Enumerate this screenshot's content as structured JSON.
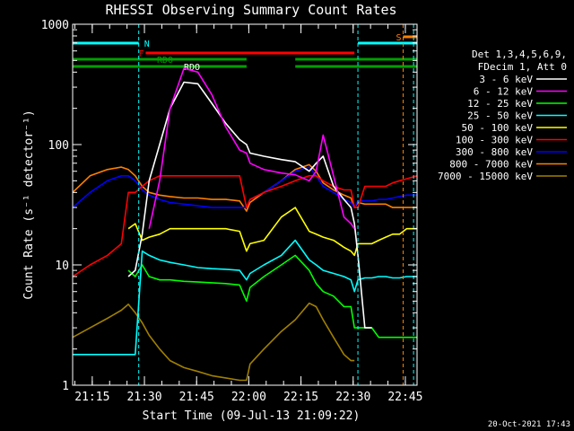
{
  "chart_data": {
    "type": "line",
    "title": "RHESSI Observing Summary Count Rates",
    "xlabel": "Start Time (09-Jul-13 21:09:22)",
    "ylabel": "Count Rate (s⁻¹ detector⁻¹)",
    "y_scale": "log",
    "ylim": [
      1,
      1000
    ],
    "xlim_minutes": [
      0,
      99
    ],
    "x_start": "21:09:22",
    "x_tick_labels": [
      "21:15",
      "21:30",
      "21:45",
      "22:00",
      "22:15",
      "22:30",
      "22:45"
    ],
    "y_tick_labels": [
      "1",
      "10",
      "100",
      "1000"
    ],
    "footer": "20-Oct-2021 17:43",
    "legend_header": [
      "Det 1,3,4,5,6,9,",
      "FDecim 1, Att 0"
    ],
    "flags": {
      "N": {
        "label": "N",
        "color": "#00ffff",
        "segments": [
          [
            0,
            19
          ],
          [
            82,
            99
          ]
        ]
      },
      "F": {
        "label": "F",
        "color": "#ff0000",
        "segments": [
          [
            21,
            81
          ]
        ]
      },
      "RDO": {
        "label": "RDO",
        "color": "#00a000",
        "segments": [
          [
            0,
            50
          ],
          [
            64,
            99
          ]
        ]
      },
      "S": {
        "label": "S",
        "color": "#ff8000",
        "segments": [
          [
            95,
            99
          ]
        ]
      },
      "markers": [
        {
          "at": 19,
          "color": "#00ffff"
        },
        {
          "at": 82,
          "color": "#00ffff"
        },
        {
          "at": 95,
          "color": "#ff8000"
        },
        {
          "at": 98,
          "color": "#00ffff"
        }
      ]
    },
    "x": [
      0,
      5,
      10,
      14,
      16,
      18,
      20,
      22,
      25,
      28,
      32,
      36,
      40,
      44,
      48,
      50,
      51,
      55,
      60,
      64,
      68,
      70,
      72,
      75,
      78,
      80,
      81,
      82,
      84,
      86,
      88,
      90,
      92,
      94,
      96,
      99
    ],
    "series": [
      {
        "name": "3 - 6 keV",
        "color": "#ffffff",
        "values": [
          null,
          null,
          null,
          null,
          8,
          9,
          18,
          50,
          100,
          200,
          330,
          320,
          220,
          150,
          110,
          100,
          85,
          80,
          75,
          72,
          60,
          70,
          80,
          45,
          35,
          30,
          22,
          12,
          3,
          3,
          null,
          null,
          null,
          null,
          null,
          null
        ]
      },
      {
        "name": "6 - 12 keV",
        "color": "#ff00ff",
        "values": [
          null,
          null,
          null,
          null,
          null,
          null,
          null,
          20,
          50,
          200,
          430,
          400,
          260,
          140,
          90,
          85,
          70,
          62,
          58,
          56,
          50,
          60,
          120,
          55,
          25,
          22,
          20,
          null,
          null,
          null,
          null,
          null,
          null,
          null,
          null,
          null
        ]
      },
      {
        "name": "12 - 25 keV",
        "color": "#00ff00",
        "values": [
          null,
          null,
          null,
          null,
          9,
          8,
          10,
          8,
          7.5,
          7.5,
          7.3,
          7.2,
          7.1,
          7,
          6.8,
          5,
          6.5,
          8,
          10,
          12,
          9,
          7,
          6,
          5.5,
          4.5,
          4.5,
          3,
          3,
          3,
          3,
          2.5,
          2.5,
          2.5,
          2.5,
          2.5,
          2.5
        ]
      },
      {
        "name": "25 - 50 keV",
        "color": "#00ffff",
        "values": [
          1.8,
          1.8,
          1.8,
          1.8,
          1.8,
          1.8,
          13,
          12,
          11,
          10.5,
          10,
          9.5,
          9.3,
          9.2,
          9,
          7.5,
          8.5,
          10,
          12,
          16,
          11,
          10,
          9,
          8.5,
          8,
          7.5,
          6,
          7.5,
          7.8,
          7.8,
          8,
          8,
          7.8,
          7.8,
          8,
          8
        ]
      },
      {
        "name": "50 - 100 keV",
        "color": "#ffff00",
        "values": [
          null,
          null,
          null,
          null,
          20,
          22,
          16,
          17,
          18,
          20,
          20,
          20,
          20,
          20,
          19,
          13,
          15,
          16,
          25,
          30,
          19,
          18,
          17,
          16,
          14,
          13,
          12,
          15,
          15,
          15,
          16,
          17,
          18,
          18,
          20,
          20
        ]
      },
      {
        "name": "100 - 300 keV",
        "color": "#ff0000",
        "values": [
          8,
          10,
          12,
          15,
          40,
          40,
          45,
          50,
          55,
          55,
          55,
          55,
          55,
          55,
          55,
          30,
          35,
          40,
          45,
          50,
          55,
          55,
          50,
          45,
          42,
          42,
          30,
          30,
          45,
          45,
          45,
          45,
          48,
          50,
          52,
          55
        ]
      },
      {
        "name": "300 - 800 keV",
        "color": "#0000ff",
        "values": [
          30,
          40,
          50,
          55,
          55,
          50,
          42,
          38,
          35,
          33,
          32,
          31,
          30,
          30,
          30,
          30,
          35,
          40,
          50,
          60,
          65,
          55,
          45,
          40,
          35,
          33,
          30,
          34,
          34,
          34,
          35,
          35,
          36,
          37,
          38,
          38
        ]
      },
      {
        "name": "800 - 7000 keV",
        "color": "#ff8000",
        "values": [
          40,
          55,
          62,
          65,
          62,
          55,
          45,
          40,
          38,
          37,
          36,
          36,
          35,
          35,
          34,
          28,
          33,
          40,
          50,
          62,
          68,
          60,
          48,
          42,
          38,
          36,
          30,
          33,
          32,
          32,
          32,
          32,
          30,
          30,
          30,
          30
        ]
      },
      {
        "name": "7000 - 15000 keV",
        "color": "#a08000",
        "values": [
          2.5,
          3,
          3.6,
          4.2,
          4.7,
          4,
          3.3,
          2.6,
          2,
          1.6,
          1.4,
          1.3,
          1.2,
          1.15,
          1.1,
          1.1,
          1.5,
          2,
          2.8,
          3.5,
          4.8,
          4.5,
          3.5,
          2.5,
          1.8,
          1.6,
          1.6,
          null,
          null,
          null,
          null,
          null,
          null,
          null,
          null,
          null
        ]
      }
    ]
  }
}
